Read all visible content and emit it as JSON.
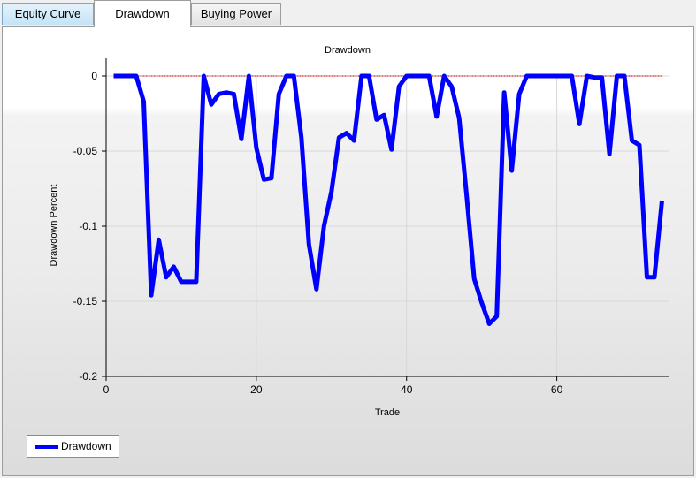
{
  "tabs": [
    {
      "label": "Equity Curve",
      "selected": false
    },
    {
      "label": "Drawdown",
      "selected": true
    },
    {
      "label": "Buying Power",
      "selected": false
    }
  ],
  "colors": {
    "series": "#0000ff",
    "zero_line": "#c00000",
    "grid": "#d8d8d8",
    "axis": "#000000",
    "tab_accent": "#c4e3f7"
  },
  "chart_data": {
    "type": "line",
    "title": "Drawdown",
    "xlabel": "Trade",
    "ylabel": "Drawdown Percent",
    "xlim": [
      0,
      75
    ],
    "ylim": [
      -0.2,
      0
    ],
    "x_ticks": [
      0,
      20,
      40,
      60
    ],
    "x_tick_labels": [
      "0",
      "20",
      "40",
      "60"
    ],
    "y_ticks": [
      0,
      -0.05,
      -0.1,
      -0.15,
      -0.2
    ],
    "y_tick_labels": [
      "0",
      "-0.05",
      "-0.1",
      "-0.15",
      "-0.2"
    ],
    "grid": true,
    "legend_position": "bottom-left",
    "reference_line": {
      "y": 0,
      "style": "dashed"
    },
    "series": [
      {
        "name": "Drawdown",
        "x": [
          1,
          2,
          3,
          4,
          5,
          6,
          7,
          8,
          9,
          10,
          11,
          12,
          13,
          14,
          15,
          16,
          17,
          18,
          19,
          20,
          21,
          22,
          23,
          24,
          25,
          26,
          27,
          28,
          29,
          30,
          31,
          32,
          33,
          34,
          35,
          36,
          37,
          38,
          39,
          40,
          41,
          42,
          43,
          44,
          45,
          46,
          47,
          48,
          49,
          50,
          51,
          52,
          53,
          54,
          55,
          56,
          57,
          58,
          59,
          60,
          61,
          62,
          63,
          64,
          65,
          66,
          67,
          68,
          69,
          70,
          71,
          72,
          73,
          74
        ],
        "values": [
          0,
          0,
          0,
          0,
          -0.017,
          -0.146,
          -0.109,
          -0.134,
          -0.127,
          -0.137,
          -0.137,
          -0.137,
          0,
          -0.019,
          -0.012,
          -0.011,
          -0.012,
          -0.042,
          0,
          -0.048,
          -0.069,
          -0.068,
          -0.012,
          0,
          0,
          -0.041,
          -0.112,
          -0.142,
          -0.1,
          -0.077,
          -0.041,
          -0.038,
          -0.043,
          0,
          0,
          -0.029,
          -0.026,
          -0.049,
          -0.007,
          0,
          0,
          0,
          0,
          -0.027,
          0,
          -0.007,
          -0.028,
          -0.08,
          -0.135,
          -0.151,
          -0.165,
          -0.16,
          -0.011,
          -0.063,
          -0.012,
          0,
          0,
          0,
          0,
          0,
          0,
          0,
          -0.032,
          0,
          -0.001,
          -0.001,
          -0.052,
          0,
          0,
          -0.043,
          -0.046,
          -0.134,
          -0.134,
          -0.083
        ]
      }
    ]
  }
}
